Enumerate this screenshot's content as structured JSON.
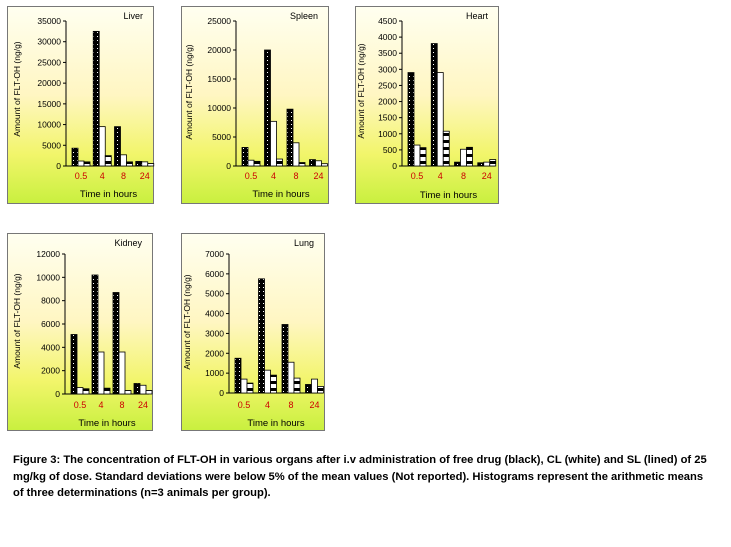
{
  "caption": "Figure 3: The concentration of FLT-OH in various organs after i.v administration of free drug (black), CL (white) and SL (lined) of 25 mg/kg of dose. Standard deviations were below 5% of the mean values (Not reported). Histograms represent the arithmetic means of three determinations (n=3 animals per group).",
  "colors": {
    "free_drug": "#000000",
    "CL": "#ffffff",
    "SL": "#000000",
    "tick_label_x": "#cc0000",
    "gradient_top": "#fffff0",
    "gradient_bottom": "#c9f03f"
  },
  "chart_data": [
    {
      "type": "bar",
      "title": "Liver",
      "xlabel": "Time in hours",
      "ylabel": "Amount of FLT-OH (ng/g)",
      "categories": [
        "0.5",
        "4",
        "8",
        "24"
      ],
      "ylim": [
        0,
        35000
      ],
      "yticks": [
        "0",
        "5000",
        "10000",
        "15000",
        "20000",
        "25000",
        "30000",
        "35000"
      ],
      "series": [
        {
          "pattern": "dotted-black",
          "values": [
            4300,
            32500,
            9500,
            1100
          ]
        },
        {
          "pattern": "white",
          "values": [
            1200,
            9500,
            2700,
            1000
          ]
        },
        {
          "pattern": "lined",
          "values": [
            1000,
            2500,
            1000,
            600
          ]
        }
      ]
    },
    {
      "type": "bar",
      "title": "Spleen",
      "xlabel": "Time in hours",
      "ylabel": "Amount of FLT-OH (ng/g)",
      "categories": [
        "0.5",
        "4",
        "8",
        "24"
      ],
      "ylim": [
        0,
        25000
      ],
      "yticks": [
        "0",
        "5000",
        "10000",
        "15000",
        "20000",
        "25000"
      ],
      "series": [
        {
          "pattern": "dotted-black",
          "values": [
            3200,
            20000,
            9800,
            1100
          ]
        },
        {
          "pattern": "white",
          "values": [
            1000,
            7700,
            4000,
            900
          ]
        },
        {
          "pattern": "lined",
          "values": [
            800,
            1200,
            600,
            400
          ]
        }
      ]
    },
    {
      "type": "bar",
      "title": "Heart",
      "xlabel": "Time in hours",
      "ylabel": "Amount of FLT-OH (ng/g)",
      "categories": [
        "0.5",
        "4",
        "8",
        "24"
      ],
      "ylim": [
        0,
        4500
      ],
      "yticks": [
        "0",
        "500",
        "1000",
        "1500",
        "2000",
        "2500",
        "3000",
        "3500",
        "4000",
        "4500"
      ],
      "series": [
        {
          "pattern": "dotted-black",
          "values": [
            2900,
            3800,
            120,
            100
          ]
        },
        {
          "pattern": "white",
          "values": [
            650,
            2900,
            520,
            120
          ]
        },
        {
          "pattern": "lined",
          "values": [
            570,
            1080,
            580,
            200
          ]
        }
      ]
    },
    {
      "type": "bar",
      "title": "Kidney",
      "xlabel": "Time in hours",
      "ylabel": "Amount of FLT-OH (ng/g)",
      "categories": [
        "0.5",
        "4",
        "8",
        "24"
      ],
      "ylim": [
        0,
        12000
      ],
      "yticks": [
        "0",
        "2000",
        "4000",
        "6000",
        "8000",
        "10000",
        "12000"
      ],
      "series": [
        {
          "pattern": "dotted-black",
          "values": [
            5100,
            10200,
            8700,
            900
          ]
        },
        {
          "pattern": "white",
          "values": [
            550,
            3600,
            3600,
            750
          ]
        },
        {
          "pattern": "lined",
          "values": [
            450,
            500,
            300,
            300
          ]
        }
      ]
    },
    {
      "type": "bar",
      "title": "Lung",
      "xlabel": "Time in hours",
      "ylabel": "Amount of FLT-OH (ng/g)",
      "categories": [
        "0.5",
        "4",
        "8",
        "24"
      ],
      "ylim": [
        0,
        7000
      ],
      "yticks": [
        "0",
        "1000",
        "2000",
        "3000",
        "4000",
        "5000",
        "6000",
        "7000"
      ],
      "series": [
        {
          "pattern": "dotted-black",
          "values": [
            1750,
            5750,
            3450,
            430
          ]
        },
        {
          "pattern": "white",
          "values": [
            700,
            1150,
            1550,
            700
          ]
        },
        {
          "pattern": "lined",
          "values": [
            500,
            900,
            750,
            330
          ]
        }
      ]
    }
  ]
}
